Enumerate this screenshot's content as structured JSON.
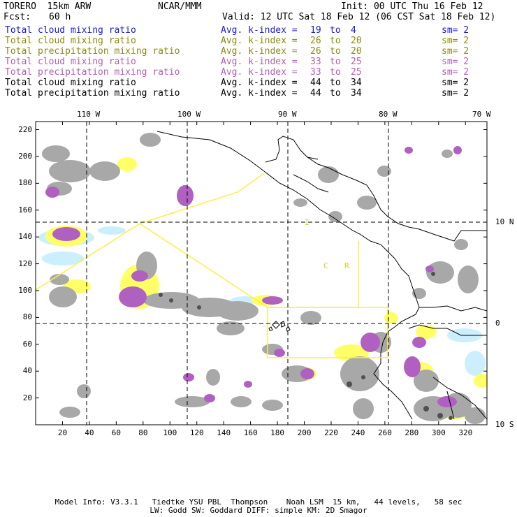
{
  "header": {
    "model": "TORERO  15km ARW",
    "org": "NCAR/MMM",
    "init": "Init: 00 UTC Thu 16 Feb 12",
    "fcst_label": "Fcst:",
    "fcst_value": "60 h",
    "valid": "Valid: 12 UTC Sat 18 Feb 12 (06 CST Sat 18 Feb 12)"
  },
  "legend": [
    {
      "field": "Total cloud mixing ratio",
      "kidx": "Avg. k-index =",
      "from": "19",
      "to_word": "to",
      "to": "4",
      "sm": "sm= 2",
      "color": "#1a1acc"
    },
    {
      "field": "Total cloud mixing ratio",
      "kidx": "Avg. k-index =",
      "from": "26",
      "to_word": "to",
      "to": "20",
      "sm": "sm= 2",
      "color": "#8a8a10"
    },
    {
      "field": "Total precipitation mixing ratio",
      "kidx": "Avg. k-index =",
      "from": "26",
      "to_word": "to",
      "to": "20",
      "sm": "sm= 2",
      "color": "#8a8a10"
    },
    {
      "field": "Total cloud mixing ratio",
      "kidx": "Avg. k-index =",
      "from": "33",
      "to_word": "to",
      "to": "25",
      "sm": "sm= 2",
      "color": "#b060b0"
    },
    {
      "field": "Total precipitation mixing ratio",
      "kidx": "Avg. k-index =",
      "from": "33",
      "to_word": "to",
      "to": "25",
      "sm": "sm= 2",
      "color": "#b060b0"
    },
    {
      "field": "Total cloud mixing ratio",
      "kidx": "Avg. k-index =",
      "from": "44",
      "to_word": "to",
      "to": "34",
      "sm": "sm= 2",
      "color": "#000000"
    },
    {
      "field": "Total precipitation mixing ratio",
      "kidx": "Avg. k-index =",
      "from": "44",
      "to_word": "to",
      "to": "34",
      "sm": "sm= 2",
      "color": "#000000"
    }
  ],
  "axes": {
    "lon_labels": [
      "110 W",
      "100 W",
      "90 W",
      "80 W",
      "70 W"
    ],
    "lat_labels": [
      "10 N",
      "0",
      "10 S"
    ],
    "x_ticks": [
      "20",
      "40",
      "60",
      "80",
      "100",
      "120",
      "140",
      "160",
      "180",
      "200",
      "220",
      "240",
      "260",
      "280",
      "300",
      "320"
    ],
    "y_ticks": [
      "220",
      "200",
      "180",
      "160",
      "140",
      "120",
      "100",
      "80",
      "60",
      "40",
      "20"
    ]
  },
  "annotations": {
    "map_letters": [
      "C",
      "R",
      "I"
    ]
  },
  "colors": {
    "cloud_gray": "#a8a8a8",
    "cloud_dark": "#505050",
    "yellow": "#ffff66",
    "magenta": "#b060c0",
    "light_blue": "#ccefff",
    "boundary_line": "#ffee44"
  },
  "footer": {
    "line1": "Model Info: V3.3.1   Tiedtke YSU PBL  Thompson    Noah LSM  15 km,   44 levels,   58 sec",
    "line2": "LW: Godd SW: Goddard DIFF: simple KM: 2D Smagor"
  }
}
